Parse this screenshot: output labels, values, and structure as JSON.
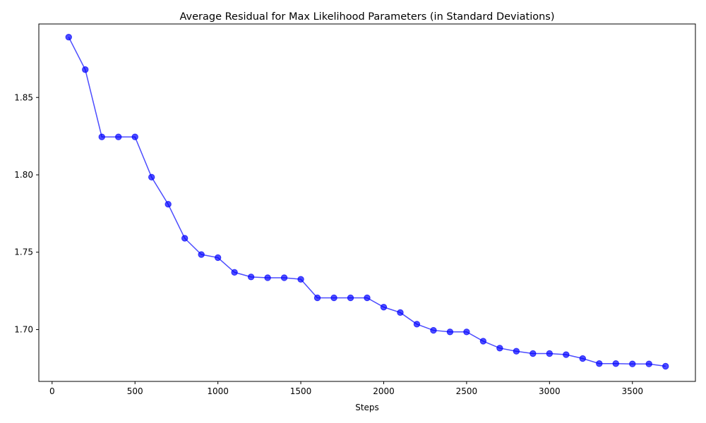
{
  "chart_data": {
    "type": "line",
    "title": "Average Residual for Max Likelihood Parameters (in Standard Deviations)",
    "xlabel": "Steps",
    "ylabel": "",
    "xlim": [
      -80,
      3880
    ],
    "ylim": [
      1.6665,
      1.8975
    ],
    "xticks": [
      0,
      500,
      1000,
      1500,
      2000,
      2500,
      3000,
      3500
    ],
    "yticks": [
      1.7,
      1.75,
      1.8,
      1.85
    ],
    "ytick_labels": [
      "1.70",
      "1.75",
      "1.80",
      "1.85"
    ],
    "grid": false,
    "series": [
      {
        "color": "#0000ff",
        "x": [
          100,
          200,
          300,
          400,
          500,
          600,
          700,
          800,
          900,
          1000,
          1100,
          1200,
          1300,
          1400,
          1500,
          1600,
          1700,
          1800,
          1900,
          2000,
          2100,
          2200,
          2300,
          2400,
          2500,
          2600,
          2700,
          2800,
          2900,
          3000,
          3100,
          3200,
          3300,
          3400,
          3500,
          3600,
          3700
        ],
        "values": [
          1.889,
          1.868,
          1.8245,
          1.8245,
          1.8245,
          1.7985,
          1.781,
          1.759,
          1.7485,
          1.7465,
          1.737,
          1.734,
          1.7335,
          1.7335,
          1.7325,
          1.7205,
          1.7205,
          1.7205,
          1.7205,
          1.7145,
          1.711,
          1.7035,
          1.6995,
          1.6985,
          1.6985,
          1.6925,
          1.688,
          1.686,
          1.6845,
          1.6845,
          1.6838,
          1.6813,
          1.678,
          1.678,
          1.6778,
          1.6778,
          1.6763
        ]
      }
    ]
  }
}
